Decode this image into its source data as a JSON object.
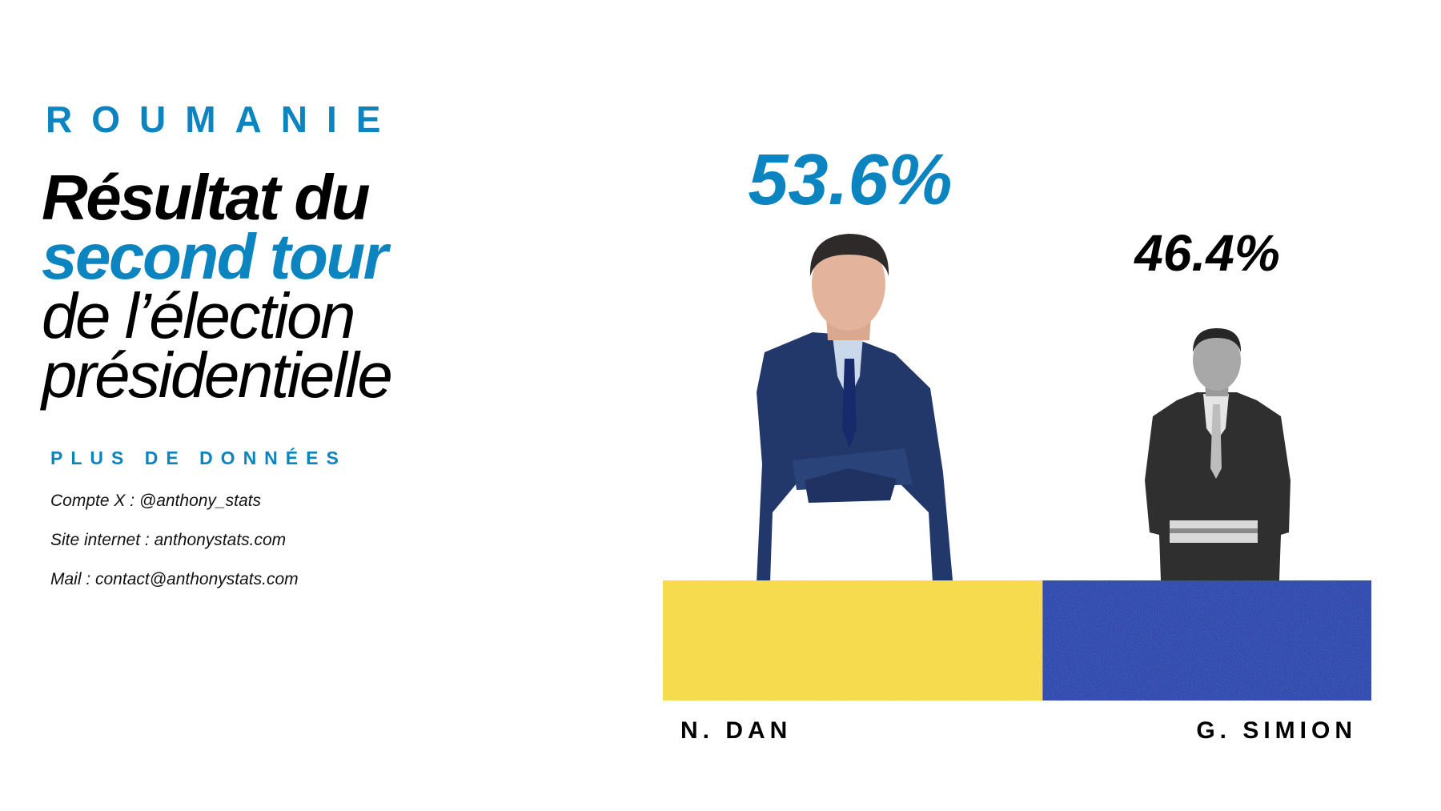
{
  "header": {
    "country": "ROUMANIE",
    "title_line1": "Résultat du",
    "title_line2": "second tour",
    "title_line3": "de l’élection",
    "title_line4": "présidentielle",
    "more": "PLUS DE DONNÉES",
    "info": [
      "Compte X : @anthony_stats",
      "Site internet : anthonystats.com",
      "Mail : contact@anthonystats.com"
    ]
  },
  "colors": {
    "accent": "#0b84bf",
    "text": "#000000",
    "dan": "#f7d946",
    "simion": "#0a2a9e"
  },
  "chart_data": {
    "type": "bar",
    "title": "",
    "orientation": "stacked-horizontal",
    "categories": [
      "N. DAN",
      "G. SIMION"
    ],
    "values": [
      53.6,
      46.4
    ],
    "labels": [
      "53.6%",
      "46.4%"
    ],
    "unit": "%",
    "xlim": [
      0,
      100
    ],
    "grid": false,
    "legend": "none"
  }
}
